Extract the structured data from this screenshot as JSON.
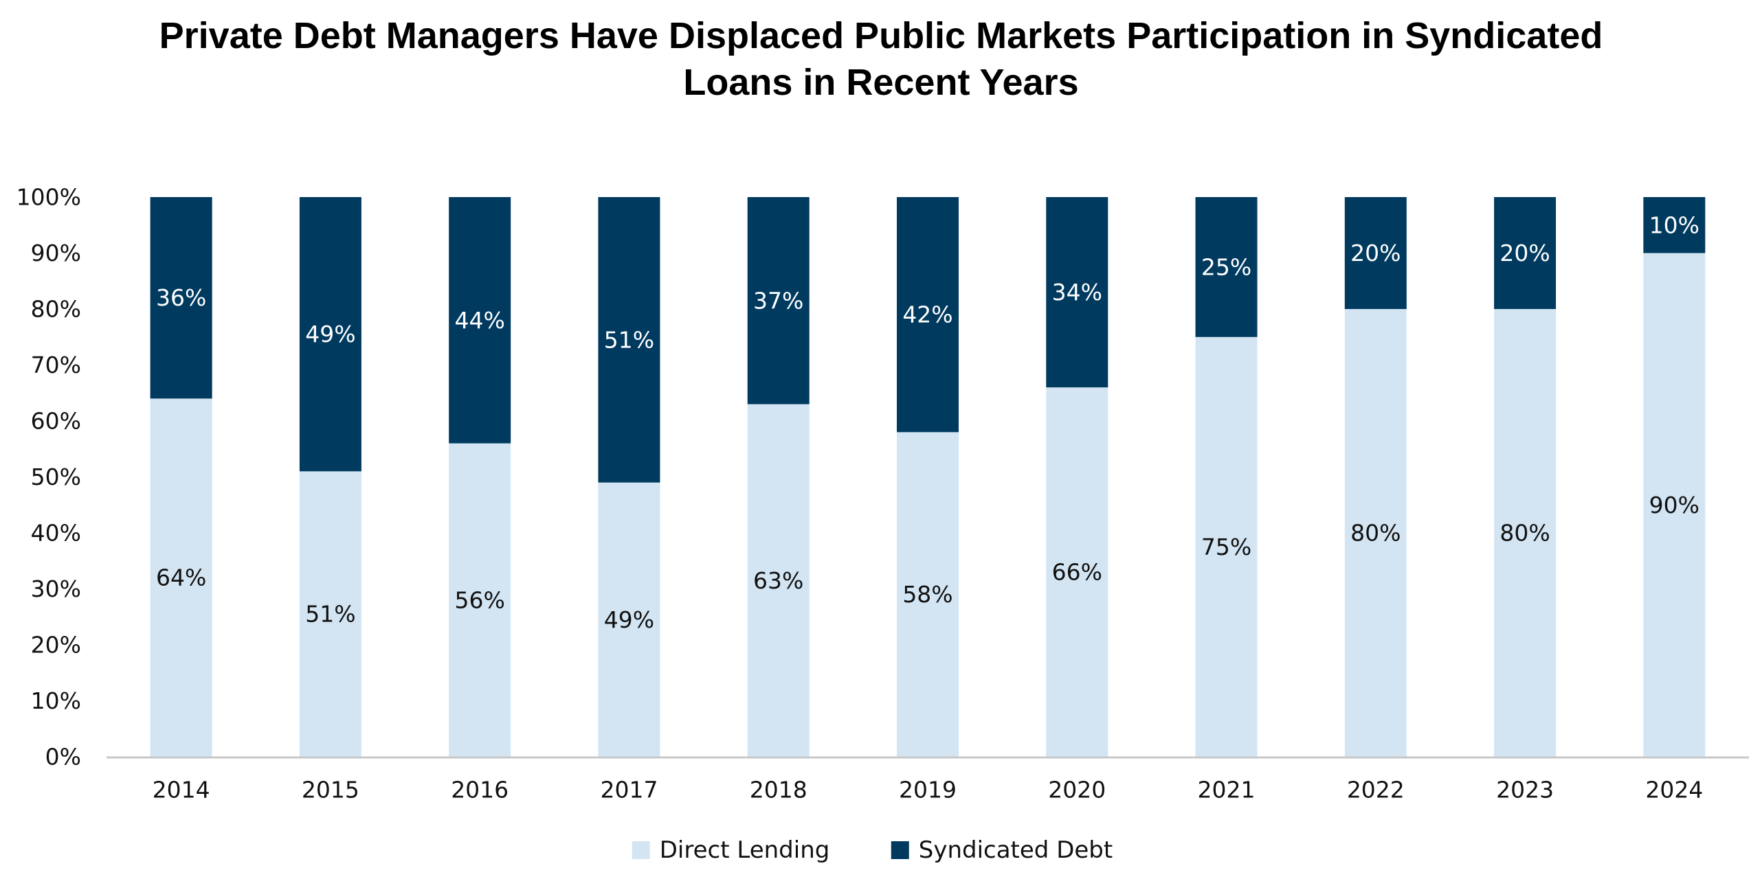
{
  "chart_data": {
    "type": "bar",
    "stacked": true,
    "title": "Private Debt Managers Have Displaced Public Markets Participation in Syndicated Loans in Recent Years",
    "title_lines": [
      "Private Debt Managers Have Displaced Public Markets Participation in Syndicated",
      "Loans in Recent Years"
    ],
    "xlabel": "",
    "ylabel": "",
    "categories": [
      "2014",
      "2015",
      "2016",
      "2017",
      "2018",
      "2019",
      "2020",
      "2021",
      "2022",
      "2023",
      "2024"
    ],
    "series": [
      {
        "name": "Direct Lending",
        "color": "#d3e5f3",
        "label_color": "#111111",
        "values": [
          64,
          51,
          56,
          49,
          63,
          58,
          66,
          75,
          80,
          80,
          90
        ],
        "labels": [
          "64%",
          "51%",
          "56%",
          "49%",
          "63%",
          "58%",
          "66%",
          "75%",
          "80%",
          "80%",
          "90%"
        ]
      },
      {
        "name": "Syndicated Debt",
        "color": "#003a5f",
        "label_color": "#ffffff",
        "values": [
          36,
          49,
          44,
          51,
          37,
          42,
          34,
          25,
          20,
          20,
          10
        ],
        "labels": [
          "36%",
          "49%",
          "44%",
          "51%",
          "37%",
          "42%",
          "34%",
          "25%",
          "20%",
          "20%",
          "10%"
        ]
      }
    ],
    "ylim": [
      0,
      100
    ],
    "yticks": [
      0,
      10,
      20,
      30,
      40,
      50,
      60,
      70,
      80,
      90,
      100
    ],
    "ytick_labels": [
      "0%",
      "10%",
      "20%",
      "30%",
      "40%",
      "50%",
      "60%",
      "70%",
      "80%",
      "90%",
      "100%"
    ],
    "grid": false,
    "legend_position": "bottom-center",
    "axis_color": "#c8c8c8"
  }
}
